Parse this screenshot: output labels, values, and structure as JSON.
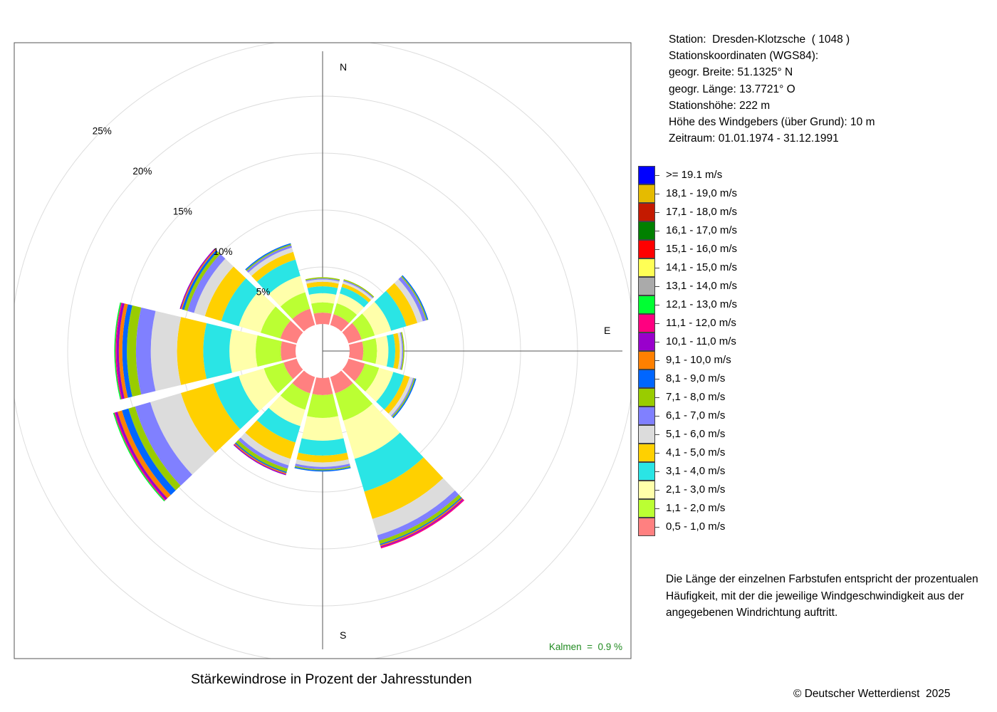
{
  "station": {
    "line1": "Station:  Dresden-Klotzsche  ( 1048 )",
    "line2": "Stationskoordinaten (WGS84):",
    "line3": "geogr. Breite: 51.1325° N",
    "line4": "geogr. Länge: 13.7721° O",
    "line5": "Stationshöhe: 222 m",
    "line6": "Höhe des Windgebers (über Grund): 10 m",
    "line7": "Zeitraum: 01.01.1974 - 31.12.1991"
  },
  "note": {
    "line1": "Die Länge der einzelnen Farbstufen entspricht der prozentualen",
    "line2": "Häufigkeit, mit der die jeweilige Windgeschwindigkeit aus der",
    "line3": "angegebenen Windrichtung auftritt."
  },
  "copyright": "© Deutscher Wetterdienst  2025",
  "chart_data": {
    "type": "windrose",
    "title": "Stärkewindrose in Prozent der Jahresstunden",
    "compass": {
      "north": "N",
      "east": "E",
      "south": "S"
    },
    "calm": "Kalmen  =  0.9 %",
    "radial_ticks": [
      "5%",
      "10%",
      "15%",
      "20%",
      "25%"
    ],
    "radial_tick_values": [
      5,
      10,
      15,
      20,
      25
    ],
    "radial_range": [
      0,
      25
    ],
    "grid": true,
    "legend_position": "right",
    "speed_classes": [
      {
        "label": "0,5 - 1,0 m/s",
        "color": "#ff8080"
      },
      {
        "label": "1,1 - 2,0 m/s",
        "color": "#bbff33"
      },
      {
        "label": "2,1 - 3,0 m/s",
        "color": "#ffffaa"
      },
      {
        "label": "3,1 - 4,0 m/s",
        "color": "#2ae5e5"
      },
      {
        "label": "4,1 - 5,0 m/s",
        "color": "#ffd000"
      },
      {
        "label": "5,1 - 6,0 m/s",
        "color": "#dcdcdc"
      },
      {
        "label": "6,1 - 7,0 m/s",
        "color": "#8080ff"
      },
      {
        "label": "7,1 - 8,0 m/s",
        "color": "#99cc00"
      },
      {
        "label": "8,1 - 9,0 m/s",
        "color": "#0066ff"
      },
      {
        "label": "9,1 - 10,0 m/s",
        "color": "#ff8000"
      },
      {
        "label": "10,1 - 11,0 m/s",
        "color": "#9900cc"
      },
      {
        "label": "11,1 - 12,0 m/s",
        "color": "#ff0080"
      },
      {
        "label": "12,1 - 13,0 m/s",
        "color": "#00ff33"
      },
      {
        "label": "13,1 - 14,0 m/s",
        "color": "#aaaaaa"
      },
      {
        "label": "14,1 - 15,0 m/s",
        "color": "#ffff55"
      },
      {
        "label": "15,1 - 16,0 m/s",
        "color": "#ff0000"
      },
      {
        "label": "16,1 - 17,0 m/s",
        "color": "#008000"
      },
      {
        "label": "17,1 - 18,0 m/s",
        "color": "#c41a00"
      },
      {
        "label": "18,1 - 19,0 m/s",
        "color": "#e5bb00"
      },
      {
        "label": ">= 19.1 m/s",
        "color": "#0000ff"
      }
    ],
    "directions": [
      0,
      30,
      60,
      90,
      120,
      150,
      180,
      210,
      240,
      270,
      300,
      330
    ],
    "frequencies": [
      [
        1.0,
        0.9,
        0.8,
        0.6,
        0.4,
        0.2,
        0.1,
        0.1,
        0,
        0,
        0,
        0,
        0,
        0,
        0,
        0,
        0,
        0,
        0,
        0
      ],
      [
        1.0,
        1.0,
        0.9,
        0.6,
        0.3,
        0.2,
        0.1,
        0.1,
        0,
        0,
        0,
        0,
        0,
        0,
        0,
        0,
        0,
        0,
        0,
        0
      ],
      [
        1.2,
        1.2,
        1.5,
        1.4,
        1.0,
        0.5,
        0.3,
        0.1,
        0.1,
        0,
        0,
        0,
        0,
        0,
        0,
        0,
        0,
        0,
        0,
        0
      ],
      [
        1.2,
        1.2,
        1.0,
        0.6,
        0.4,
        0.2,
        0.1,
        0.1,
        0,
        0,
        0,
        0,
        0,
        0,
        0,
        0,
        0,
        0,
        0,
        0
      ],
      [
        1.5,
        1.3,
        1.3,
        1.0,
        0.5,
        0.3,
        0.1,
        0.1,
        0.1,
        0,
        0,
        0,
        0,
        0,
        0,
        0,
        0,
        0,
        0,
        0
      ],
      [
        1.5,
        2.5,
        3.5,
        3.0,
        2.5,
        1.5,
        0.5,
        0.3,
        0.1,
        0.1,
        0.1,
        0.1,
        0,
        0,
        0,
        0,
        0,
        0,
        0,
        0
      ],
      [
        1.5,
        2.0,
        2.0,
        1.3,
        0.6,
        0.4,
        0.2,
        0.1,
        0.1,
        0,
        0,
        0,
        0,
        0,
        0,
        0,
        0,
        0,
        0,
        0
      ],
      [
        1.5,
        1.5,
        1.5,
        1.5,
        1.5,
        0.6,
        0.3,
        0.3,
        0.1,
        0.1,
        0.1,
        0,
        0,
        0,
        0,
        0,
        0,
        0,
        0,
        0
      ],
      [
        1.2,
        1.8,
        2.3,
        2.3,
        3.0,
        2.8,
        1.4,
        0.6,
        0.6,
        0.4,
        0.2,
        0.1,
        0.1,
        0,
        0,
        0,
        0,
        0,
        0,
        0
      ],
      [
        1.3,
        2.2,
        2.3,
        2.3,
        2.3,
        2.3,
        1.3,
        0.8,
        0.4,
        0.3,
        0.2,
        0.1,
        0.1,
        0,
        0,
        0,
        0,
        0,
        0,
        0
      ],
      [
        1.5,
        1.8,
        2.0,
        1.6,
        1.5,
        1.0,
        0.6,
        0.3,
        0.2,
        0.1,
        0.1,
        0,
        0,
        0,
        0,
        0,
        0,
        0,
        0,
        0
      ],
      [
        1.5,
        1.5,
        1.5,
        1.5,
        0.7,
        0.4,
        0.2,
        0.1,
        0.1,
        0,
        0,
        0,
        0,
        0,
        0,
        0,
        0,
        0,
        0,
        0
      ]
    ]
  }
}
